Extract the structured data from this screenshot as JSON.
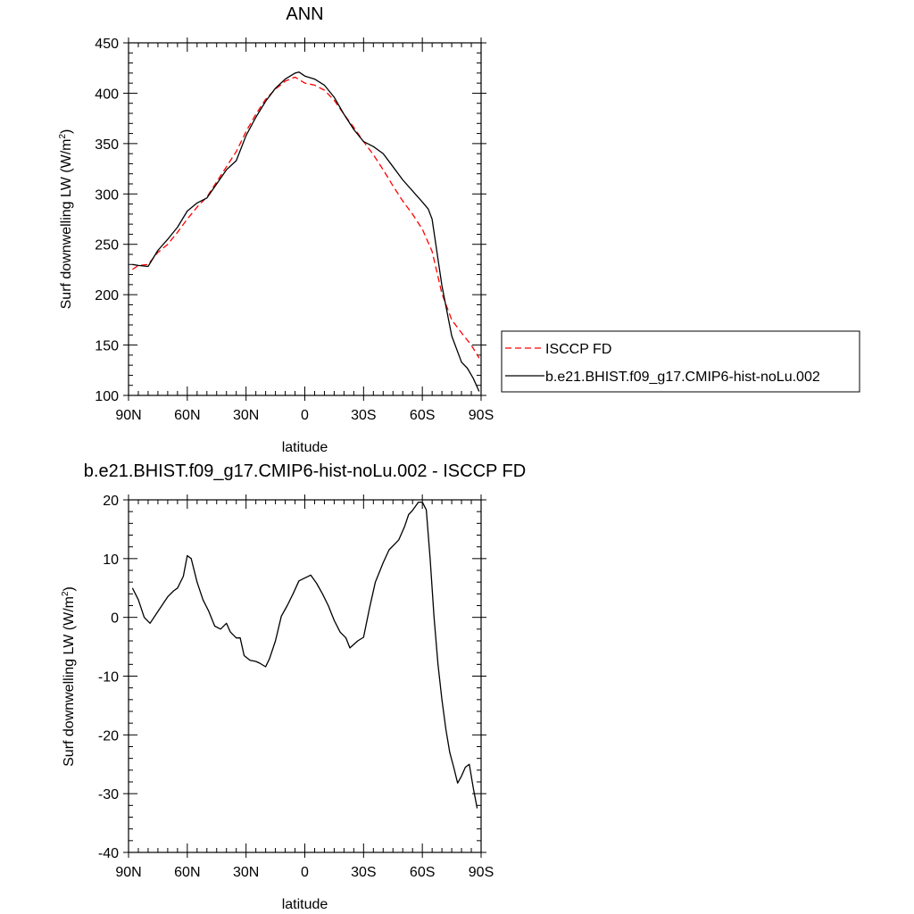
{
  "chart_data": [
    {
      "type": "line",
      "title": "ANN",
      "xlabel": "latitude",
      "ylabel": "Surf downwelling LW (W/m",
      "ylabel_sup": "2",
      "ylabel_close": ")",
      "xlim": [
        90,
        -90
      ],
      "ylim": [
        100,
        450
      ],
      "xticks": [
        90,
        60,
        30,
        0,
        -30,
        -60,
        -90
      ],
      "xtick_labels": [
        "90N",
        "60N",
        "30N",
        "0",
        "30S",
        "60S",
        "90S"
      ],
      "yticks": [
        100,
        150,
        200,
        250,
        300,
        350,
        400,
        450
      ],
      "ytick_labels": [
        "100",
        "150",
        "200",
        "250",
        "300",
        "350",
        "400",
        "450"
      ],
      "legend": "right-outside",
      "series": [
        {
          "name": "ISCCP FD",
          "color": "#ff0000",
          "dash": "dashed",
          "x": [
            88,
            85,
            80,
            75,
            70,
            65,
            60,
            55,
            50,
            45,
            40,
            35,
            30,
            25,
            20,
            15,
            10,
            5,
            0,
            -5,
            -10,
            -15,
            -20,
            -25,
            -30,
            -35,
            -40,
            -45,
            -50,
            -55,
            -60,
            -65,
            -70,
            -75,
            -80,
            -85,
            -89
          ],
          "values": [
            225,
            229,
            230,
            242,
            250,
            262,
            275,
            287,
            297,
            312,
            327,
            342,
            362,
            379,
            394,
            404,
            412,
            416,
            410,
            408,
            403,
            393,
            379,
            366,
            352,
            339,
            324,
            308,
            293,
            280,
            265,
            243,
            201,
            175,
            162,
            150,
            137
          ]
        },
        {
          "name": "b.e21.BHIST.f09_g17.CMIP6-hist-noLu.002",
          "color": "#000000",
          "dash": "solid",
          "x": [
            88,
            85,
            80,
            75,
            70,
            65,
            60,
            55,
            50,
            45,
            40,
            35,
            30,
            25,
            20,
            15,
            10,
            5,
            3,
            0,
            -5,
            -10,
            -15,
            -20,
            -25,
            -30,
            -35,
            -40,
            -45,
            -50,
            -55,
            -60,
            -63,
            -65,
            -70,
            -75,
            -80,
            -83,
            -86,
            -89
          ],
          "values": [
            230,
            229,
            228,
            244,
            255,
            267,
            283,
            291,
            296,
            310,
            324,
            333,
            358,
            376,
            392,
            405,
            414,
            420,
            421,
            417,
            414,
            408,
            396,
            379,
            364,
            352,
            347,
            340,
            327,
            314,
            303,
            292,
            285,
            275,
            209,
            159,
            133,
            127,
            117,
            104
          ]
        }
      ]
    },
    {
      "type": "line",
      "title": "b.e21.BHIST.f09_g17.CMIP6-hist-noLu.002 - ISCCP FD",
      "xlabel": "latitude",
      "ylabel": "Surf downwelling LW (W/m",
      "ylabel_sup": "2",
      "ylabel_close": ")",
      "xlim": [
        90,
        -90
      ],
      "ylim": [
        -40,
        20
      ],
      "xticks": [
        90,
        60,
        30,
        0,
        -30,
        -60,
        -90
      ],
      "xtick_labels": [
        "90N",
        "60N",
        "30N",
        "0",
        "30S",
        "60S",
        "90S"
      ],
      "yticks": [
        -40,
        -30,
        -20,
        -10,
        0,
        10,
        20
      ],
      "ytick_labels": [
        "-40",
        "-30",
        "-20",
        "-10",
        "0",
        "10",
        "20"
      ],
      "series": [
        {
          "color": "#000000",
          "dash": "solid",
          "x": [
            88,
            85,
            82,
            79,
            76,
            73,
            70,
            67,
            65,
            62,
            60,
            58,
            55,
            52,
            49,
            46,
            43,
            40,
            38,
            35,
            33,
            31,
            28,
            25,
            23,
            20,
            18,
            15,
            12,
            9,
            6,
            3,
            0,
            -3,
            -6,
            -9,
            -12,
            -15,
            -18,
            -21,
            -23,
            -27,
            -30,
            -33,
            -36,
            -40,
            -43,
            -46,
            -48,
            -51,
            -53,
            -55,
            -58,
            -60,
            -62,
            -64,
            -66,
            -68,
            -70,
            -72,
            -74,
            -76,
            -78,
            -80,
            -82,
            -84,
            -86,
            -88
          ],
          "values": [
            5,
            3,
            0,
            -1,
            0.5,
            2,
            3.5,
            4.5,
            5,
            7,
            10.5,
            10,
            6,
            3,
            1,
            -1.5,
            -2,
            -1,
            -2.5,
            -3.5,
            -3.5,
            -6.5,
            -7.3,
            -7.5,
            -7.8,
            -8.4,
            -7,
            -4,
            0.2,
            2,
            4,
            6.2,
            6.7,
            7.2,
            5.8,
            4,
            2,
            -0.5,
            -2.5,
            -3.5,
            -5.2,
            -4,
            -3.4,
            1.5,
            6,
            9.3,
            11.5,
            12.5,
            13.2,
            15.5,
            17.5,
            18.2,
            19.6,
            19.6,
            18.3,
            10,
            0,
            -8,
            -14,
            -19,
            -23,
            -25.5,
            -28.2,
            -27,
            -25.5,
            -25,
            -29,
            -32.5
          ]
        }
      ]
    }
  ]
}
